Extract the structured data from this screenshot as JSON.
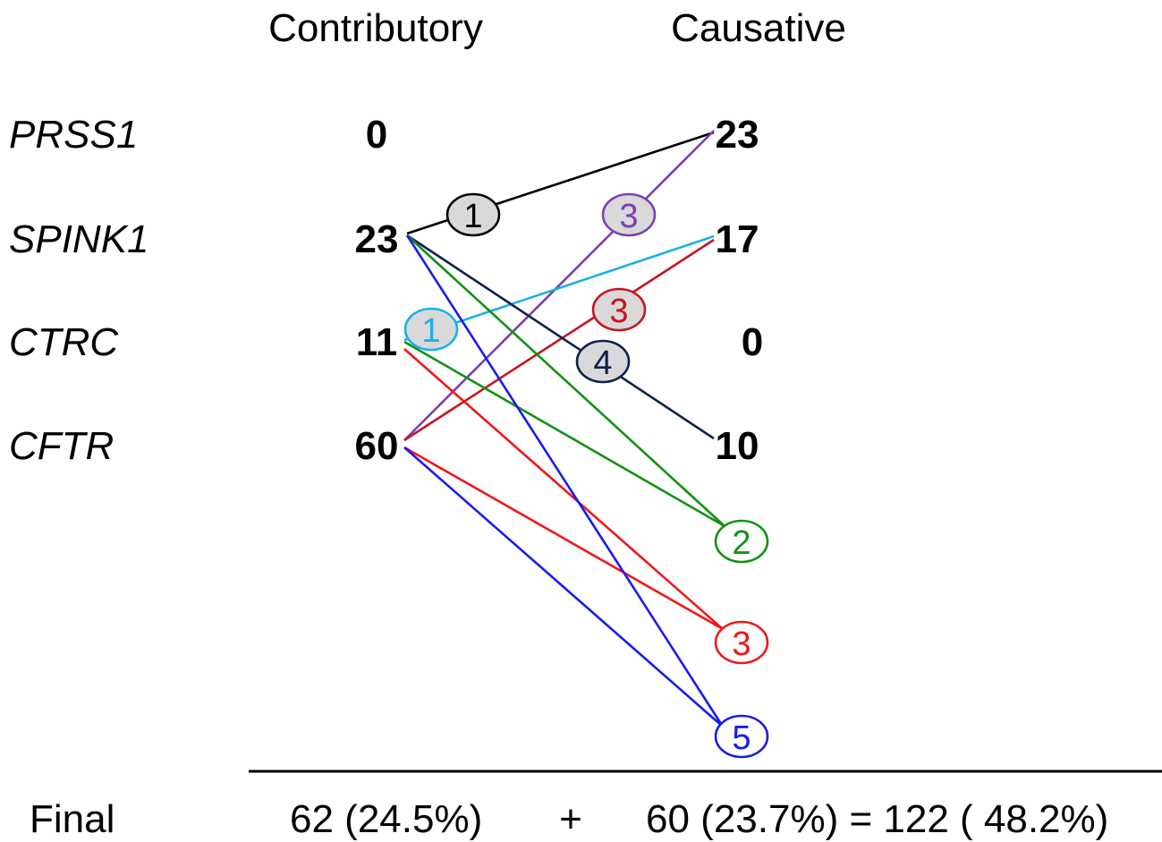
{
  "headers": {
    "contributory": "Contributory",
    "causative": "Causative"
  },
  "genes": [
    {
      "name": "PRSS1",
      "contributory": "0",
      "causative": "23"
    },
    {
      "name": "SPINK1",
      "contributory": "23",
      "causative": "17"
    },
    {
      "name": "CTRC",
      "contributory": "11",
      "causative": "0"
    },
    {
      "name": "CFTR",
      "contributory": "60",
      "causative": "10"
    }
  ],
  "combination_counts": {
    "two": "2",
    "three": "3",
    "five": "5"
  },
  "links": [
    {
      "from": "SPINK1",
      "to": "PRSS1",
      "color": "#000000",
      "label": "1"
    },
    {
      "from": "CFTR",
      "to": "PRSS1",
      "color": "#7b3fb0",
      "label": "3"
    },
    {
      "from": "CTRC",
      "to": "SPINK1",
      "color": "#1ab0e8",
      "label": "1"
    },
    {
      "from": "CFTR",
      "to": "SPINK1",
      "color": "#c8141e",
      "label": "3"
    },
    {
      "from": "SPINK1",
      "to": "CFTR",
      "color": "#0f1f4f",
      "label": "4"
    },
    {
      "from": "SPINK1",
      "to": "2",
      "color": "#139113",
      "label": ""
    },
    {
      "from": "CTRC",
      "to": "2",
      "color": "#139113",
      "label": ""
    },
    {
      "from": "CTRC",
      "to": "3",
      "color": "#f01818",
      "label": ""
    },
    {
      "from": "CFTR",
      "to": "3",
      "color": "#f01818",
      "label": ""
    },
    {
      "from": "SPINK1",
      "to": "5",
      "color": "#1a1af0",
      "label": ""
    },
    {
      "from": "CFTR",
      "to": "5",
      "color": "#1a1af0",
      "label": ""
    }
  ],
  "badge_fills": {
    "grey": "#d9d9d9",
    "white": "#ffffff"
  },
  "footer": {
    "label": "Final",
    "contributory": "62 (24.5%)",
    "plus": "+",
    "causative_total": "60 (23.7%) = 122 ( 48.2%)"
  }
}
